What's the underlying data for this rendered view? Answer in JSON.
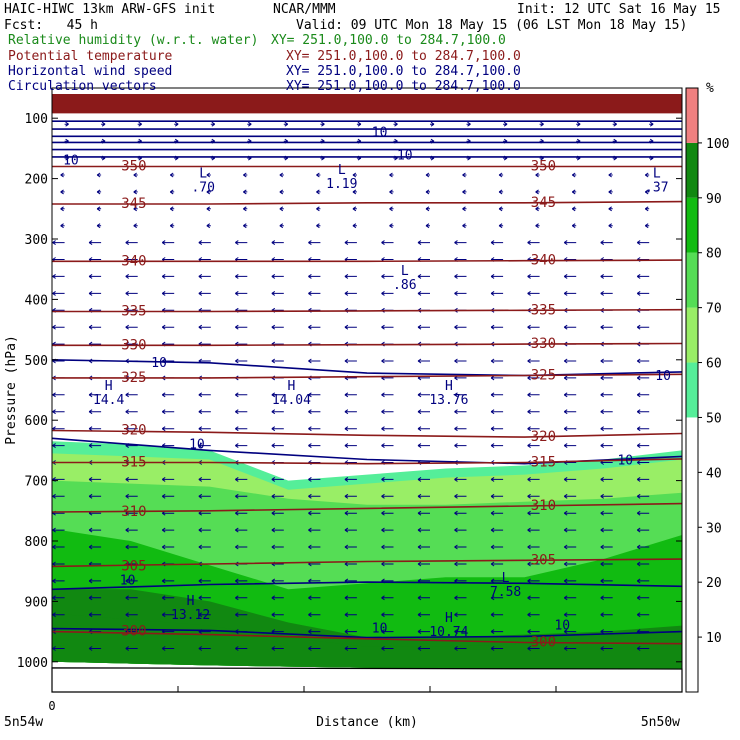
{
  "header": {
    "line1_left": "HAIC-HIWC 13km ARW-GFS init",
    "line1_mid": "NCAR/MMM",
    "line1_right": "Init: 12 UTC Sat 16 May 15",
    "line2_left": "Fcst:   45 h",
    "line2_right": "Valid: 09 UTC Mon 18 May 15 (06 LST Mon 18 May 15)"
  },
  "legend_lines": [
    {
      "label": "Relative humidity (w.r.t. water)",
      "xy": "XY= 251.0,100.0 to 284.7,100.0",
      "color": "#1a8a1a"
    },
    {
      "label": "Potential temperature",
      "xy": "XY= 251.0,100.0 to 284.7,100.0",
      "color": "#8b1a1a"
    },
    {
      "label": "Horizontal wind speed",
      "xy": "XY= 251.0,100.0 to 284.7,100.0",
      "color": "#00007f"
    },
    {
      "label": "Circulation vectors",
      "xy": "XY= 251.0,100.0 to 284.7,100.0",
      "color": "#00007f"
    }
  ],
  "chart_data": {
    "type": "heatmap",
    "xlabel": "Distance (km)",
    "ylabel": "Pressure (hPa)",
    "x_start_tick": "0",
    "x_left_label": "5n54w",
    "x_right_label": "5n50w",
    "y_ticks": [
      100,
      200,
      300,
      400,
      500,
      600,
      700,
      800,
      900,
      1000
    ],
    "ylim": [
      1050,
      50
    ],
    "colorbar": {
      "unit": "%",
      "ticks": [
        10,
        20,
        30,
        40,
        50,
        60,
        70,
        80,
        90,
        100
      ],
      "bands": [
        {
          "from": 0,
          "to": 50,
          "color": "#ffffff"
        },
        {
          "from": 50,
          "to": 60,
          "color": "#55ee99"
        },
        {
          "from": 60,
          "to": 70,
          "color": "#99ee66"
        },
        {
          "from": 70,
          "to": 80,
          "color": "#55dd55"
        },
        {
          "from": 80,
          "to": 90,
          "color": "#11bb11"
        },
        {
          "from": 90,
          "to": 100,
          "color": "#118811"
        },
        {
          "from": 100,
          "to": 110,
          "color": "#f08080"
        }
      ]
    },
    "theta_isolines": [
      {
        "label": "350",
        "pressure": [
          180,
          180,
          180,
          180,
          180
        ]
      },
      {
        "label": "345",
        "pressure": [
          242,
          242,
          240,
          240,
          238
        ]
      },
      {
        "label": "340",
        "pressure": [
          337,
          337,
          337,
          336,
          335
        ]
      },
      {
        "label": "335",
        "pressure": [
          420,
          420,
          419,
          418,
          417
        ]
      },
      {
        "label": "330",
        "pressure": [
          476,
          476,
          475,
          474,
          473
        ]
      },
      {
        "label": "325",
        "pressure": [
          530,
          530,
          528,
          526,
          524
        ]
      },
      {
        "label": "320",
        "pressure": [
          617,
          620,
          625,
          628,
          622
        ]
      },
      {
        "label": "315",
        "pressure": [
          670,
          670,
          672,
          670,
          664
        ]
      },
      {
        "label": "310",
        "pressure": [
          752,
          750,
          746,
          742,
          738
        ]
      },
      {
        "label": "305",
        "pressure": [
          842,
          838,
          834,
          832,
          830
        ]
      },
      {
        "label": "300",
        "pressure": [
          950,
          955,
          962,
          968,
          970
        ]
      }
    ],
    "wind_speed_labels": [
      "10",
      "10",
      "10",
      "10",
      "10",
      "10",
      "10",
      "10",
      "10",
      "10"
    ],
    "extrema": [
      {
        "kind": "L",
        "value": ".70",
        "x_frac": 0.24,
        "pressure": 198
      },
      {
        "kind": "L",
        "value": "1.19",
        "x_frac": 0.46,
        "pressure": 192
      },
      {
        "kind": "L",
        "value": ".37",
        "x_frac": 0.96,
        "pressure": 198
      },
      {
        "kind": "L",
        "value": ".86",
        "x_frac": 0.56,
        "pressure": 360
      },
      {
        "kind": "H",
        "value": "14.4",
        "x_frac": 0.09,
        "pressure": 550
      },
      {
        "kind": "H",
        "value": "14.04",
        "x_frac": 0.38,
        "pressure": 550
      },
      {
        "kind": "H",
        "value": "13.76",
        "x_frac": 0.63,
        "pressure": 550
      },
      {
        "kind": "L",
        "value": "7.58",
        "x_frac": 0.72,
        "pressure": 868
      },
      {
        "kind": "H",
        "value": "13.12",
        "x_frac": 0.22,
        "pressure": 906
      },
      {
        "kind": "H",
        "value": "10.74",
        "x_frac": 0.63,
        "pressure": 934
      }
    ]
  }
}
